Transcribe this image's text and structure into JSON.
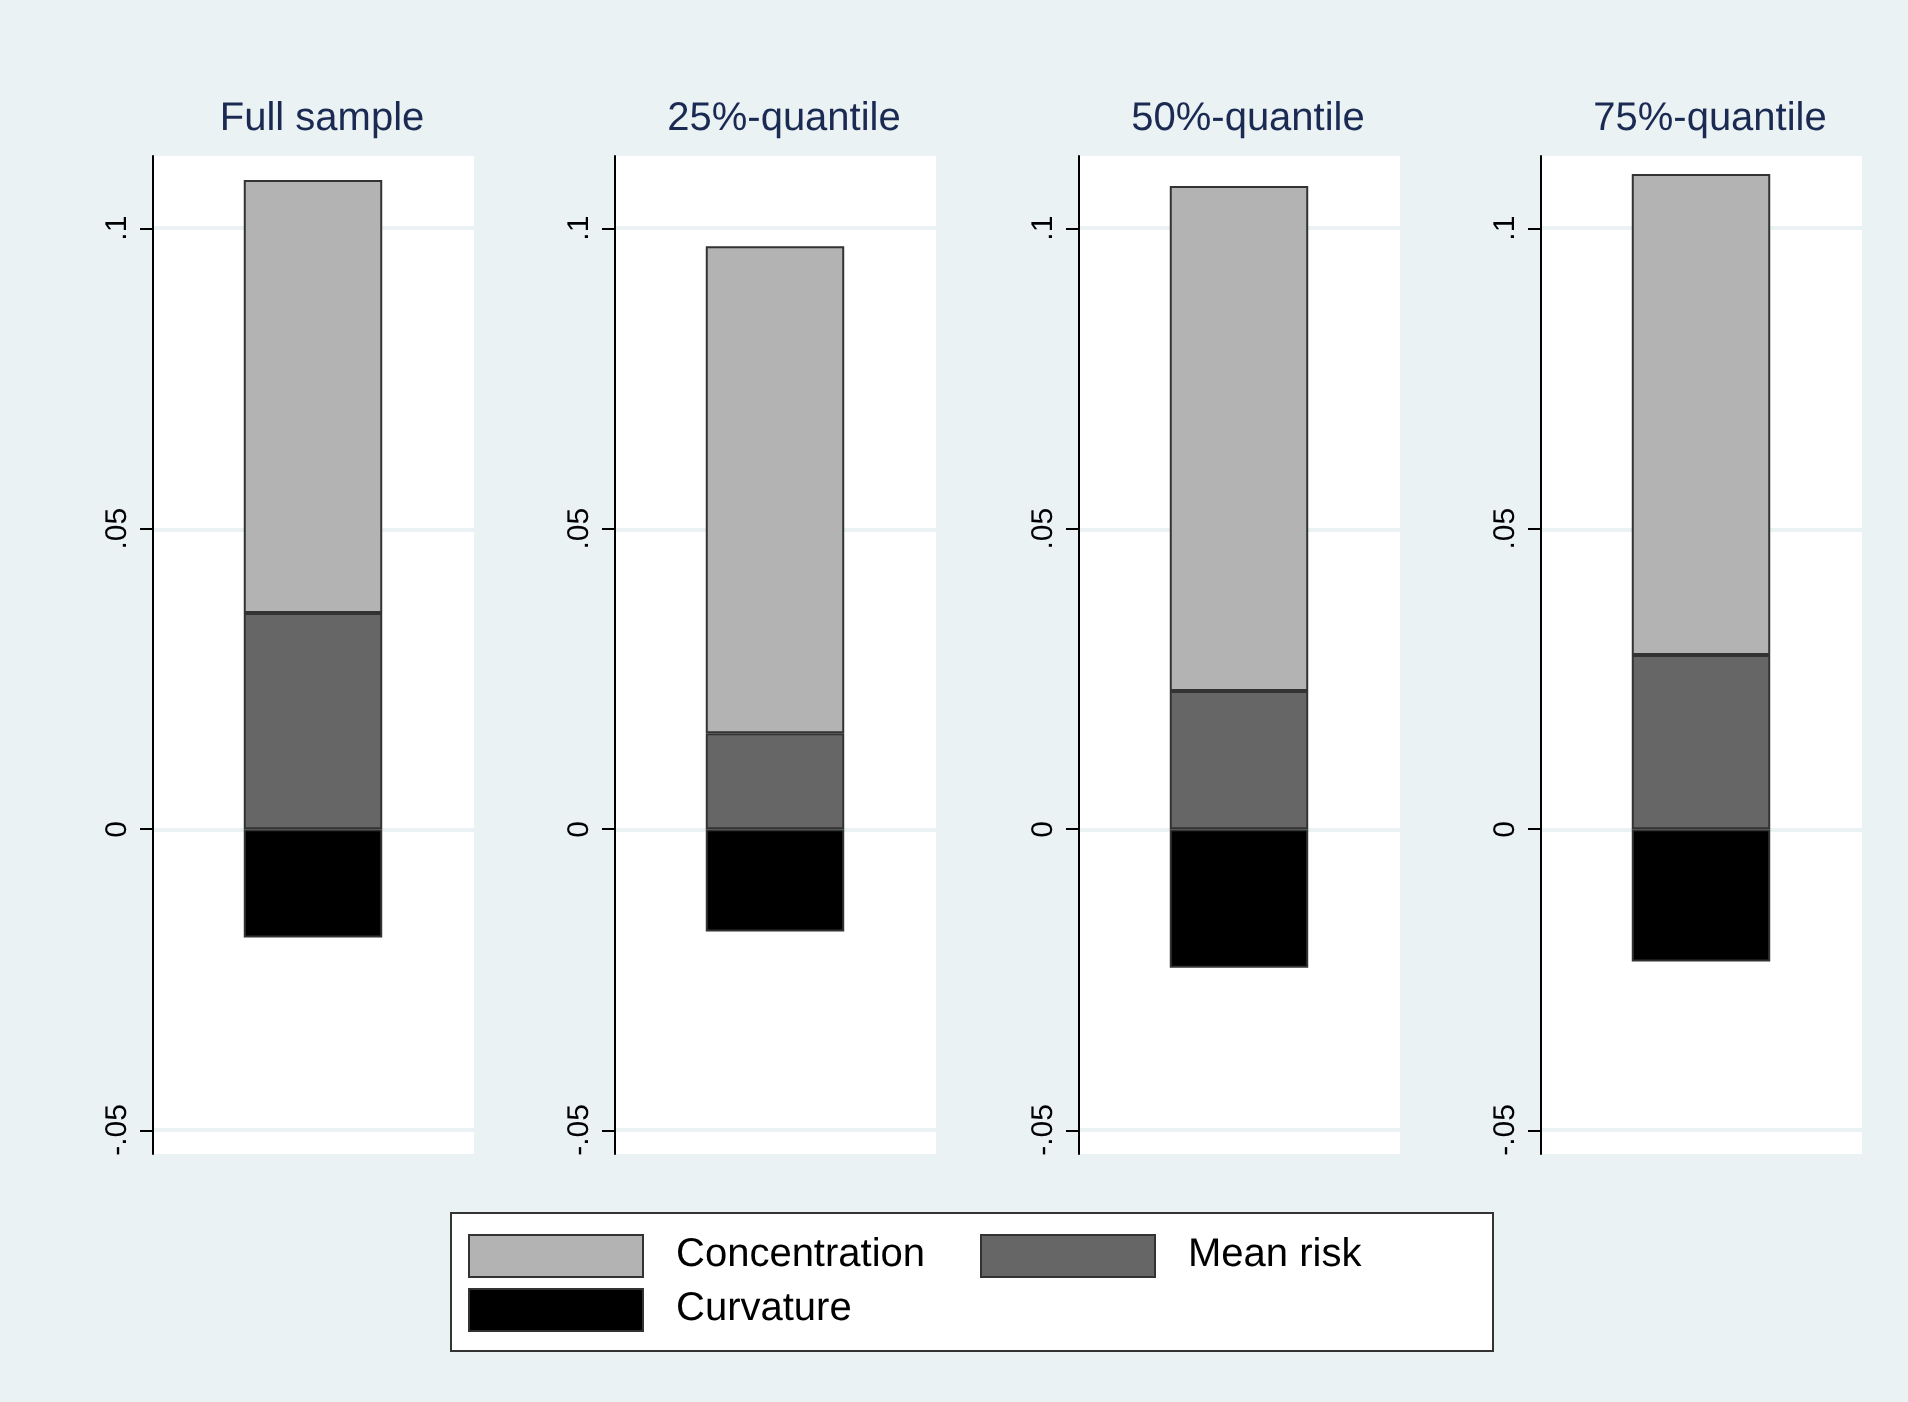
{
  "chart_data": [
    {
      "type": "bar",
      "title": "Full sample",
      "categories": [
        null
      ],
      "stacked": true,
      "grid": "y",
      "legend": "bottom",
      "tick_labels": "y",
      "ylim": [
        -0.054,
        0.112
      ],
      "yticks": [
        {
          "value": -0.05,
          "label": "-.05"
        },
        {
          "value": 0,
          "label": "0"
        },
        {
          "value": 0.05,
          "label": ".05"
        },
        {
          "value": 0.1,
          "label": ".1"
        }
      ],
      "series": [
        {
          "name": "Mean risk",
          "color": "#666666",
          "values": [
            0.036
          ]
        },
        {
          "name": "Concentration",
          "color": "#b3b3b3",
          "values": [
            0.072
          ]
        },
        {
          "name": "Curvature",
          "color": "#000000",
          "values": [
            -0.018
          ]
        }
      ]
    },
    {
      "type": "bar",
      "title": "25%-quantile",
      "categories": [
        null
      ],
      "stacked": true,
      "grid": "y",
      "tick_labels": "y",
      "ylim": [
        -0.054,
        0.112
      ],
      "yticks": [
        {
          "value": -0.05,
          "label": "-.05"
        },
        {
          "value": 0,
          "label": "0"
        },
        {
          "value": 0.05,
          "label": ".05"
        },
        {
          "value": 0.1,
          "label": ".1"
        }
      ],
      "series": [
        {
          "color": "#666666",
          "values": [
            0.016
          ]
        },
        {
          "color": "#b3b3b3",
          "values": [
            0.081
          ]
        },
        {
          "color": "#000000",
          "values": [
            -0.017
          ]
        }
      ]
    },
    {
      "type": "bar",
      "title": "50%-quantile",
      "categories": [
        null
      ],
      "stacked": true,
      "grid": "y",
      "tick_labels": "y",
      "ylim": [
        -0.054,
        0.112
      ],
      "yticks": [
        {
          "value": -0.05,
          "label": "-.05"
        },
        {
          "value": 0,
          "label": "0"
        },
        {
          "value": 0.05,
          "label": ".05"
        },
        {
          "value": 0.1,
          "label": ".1"
        }
      ],
      "series": [
        {
          "color": "#666666",
          "values": [
            0.023
          ]
        },
        {
          "color": "#b3b3b3",
          "values": [
            0.084
          ]
        },
        {
          "color": "#000000",
          "values": [
            -0.023
          ]
        }
      ]
    },
    {
      "type": "bar",
      "title": "75%-quantile",
      "categories": [
        null
      ],
      "stacked": true,
      "grid": "y",
      "tick_labels": "y",
      "ylim": [
        -0.054,
        0.112
      ],
      "yticks": [
        {
          "value": -0.05,
          "label": "-.05"
        },
        {
          "value": 0,
          "label": "0"
        },
        {
          "value": 0.05,
          "label": ".05"
        },
        {
          "value": 0.1,
          "label": ".1"
        }
      ],
      "series": [
        {
          "color": "#666666",
          "values": [
            0.029
          ]
        },
        {
          "color": "#b3b3b3",
          "values": [
            0.08
          ]
        },
        {
          "color": "#000000",
          "values": [
            -0.022
          ]
        }
      ]
    }
  ]
}
